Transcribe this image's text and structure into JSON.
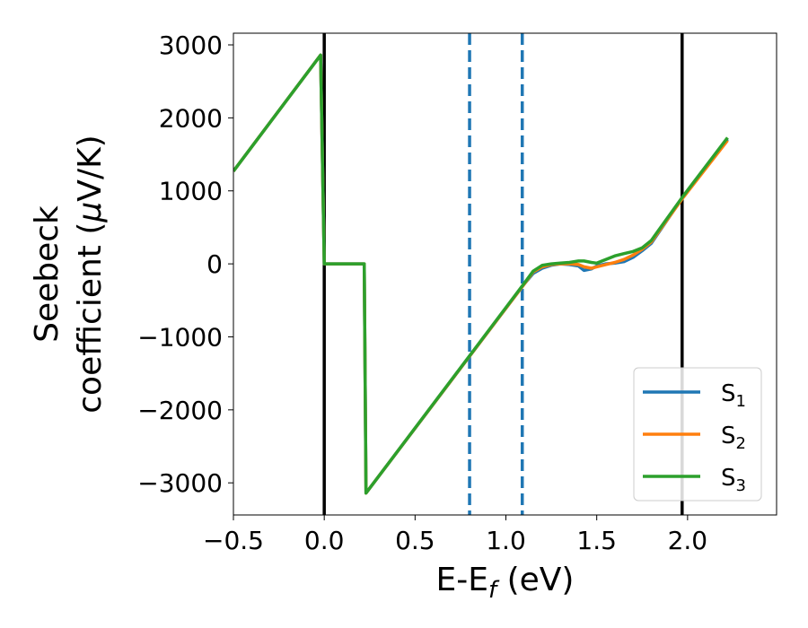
{
  "chart_data": {
    "type": "line",
    "title": "",
    "xlabel": "E-E",
    "xlabel_sub": "f",
    "xlabel_unit": " (eV)",
    "ylabel_line1": "Seebeck",
    "ylabel_line2_prefix": "coefficient  (",
    "ylabel_mu": "μ",
    "ylabel_line2_suffix": "V/K)",
    "xlim": [
      -0.5,
      2.49
    ],
    "ylim": [
      -3440,
      3160
    ],
    "xticks": [
      -0.5,
      0.0,
      0.5,
      1.0,
      1.5,
      2.0
    ],
    "xtick_labels": [
      "−0.5",
      "0.0",
      "0.5",
      "1.0",
      "1.5",
      "2.0"
    ],
    "yticks": [
      -3000,
      -2000,
      -1000,
      0,
      1000,
      2000,
      3000
    ],
    "ytick_labels": [
      "−3000",
      "−2000",
      "−1000",
      "0",
      "1000",
      "2000",
      "3000"
    ],
    "grid": false,
    "legend_position": "bottom-right",
    "vlines": [
      {
        "x": 0.0,
        "style": "solid",
        "color": "#000000"
      },
      {
        "x": 1.97,
        "style": "solid",
        "color": "#000000"
      },
      {
        "x": 0.8,
        "style": "dashed",
        "color": "#1f77b4"
      },
      {
        "x": 1.09,
        "style": "dashed",
        "color": "#1f77b4"
      }
    ],
    "series": [
      {
        "name": "S",
        "sub": "1",
        "color": "#1f77b4",
        "x": [
          -0.5,
          -0.02,
          0.0,
          0.22,
          0.23,
          1.1,
          1.15,
          1.2,
          1.25,
          1.3,
          1.35,
          1.4,
          1.43,
          1.47,
          1.5,
          1.55,
          1.6,
          1.65,
          1.7,
          1.75,
          1.8,
          1.97,
          2.22
        ],
        "y": [
          1270,
          2860,
          0,
          0,
          -3140,
          -280,
          -130,
          -60,
          -20,
          0,
          -10,
          -30,
          -90,
          -70,
          -30,
          0,
          10,
          30,
          90,
          180,
          280,
          900,
          1710
        ]
      },
      {
        "name": "S",
        "sub": "2",
        "color": "#ff7f0e",
        "x": [
          -0.5,
          -0.02,
          0.0,
          0.22,
          0.23,
          1.1,
          1.15,
          1.2,
          1.25,
          1.3,
          1.35,
          1.4,
          1.43,
          1.47,
          1.5,
          1.55,
          1.6,
          1.65,
          1.7,
          1.75,
          1.8,
          1.97,
          2.22
        ],
        "y": [
          1270,
          2860,
          0,
          0,
          -3140,
          -280,
          -110,
          -40,
          -10,
          0,
          0,
          -10,
          -40,
          -60,
          -40,
          -10,
          20,
          60,
          120,
          200,
          300,
          890,
          1690
        ]
      },
      {
        "name": "S",
        "sub": "3",
        "color": "#2ca02c",
        "x": [
          -0.5,
          -0.02,
          0.0,
          0.22,
          0.23,
          1.1,
          1.15,
          1.2,
          1.25,
          1.3,
          1.35,
          1.4,
          1.43,
          1.47,
          1.5,
          1.55,
          1.6,
          1.65,
          1.7,
          1.75,
          1.8,
          1.97,
          2.22
        ],
        "y": [
          1270,
          2860,
          0,
          0,
          -3140,
          -270,
          -100,
          -20,
          0,
          10,
          20,
          40,
          40,
          20,
          10,
          60,
          110,
          140,
          170,
          220,
          320,
          910,
          1730
        ]
      }
    ]
  }
}
